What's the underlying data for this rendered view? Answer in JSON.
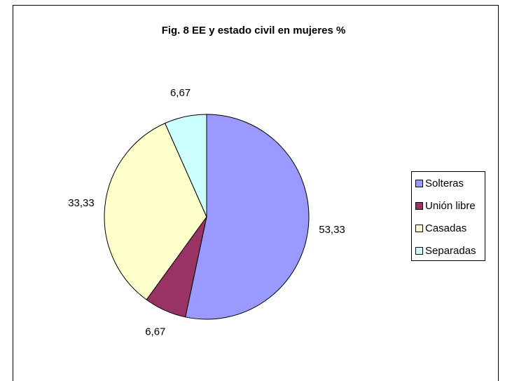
{
  "chart_data": {
    "type": "pie",
    "title": "Fig. 8  EE y estado civil en mujeres %",
    "categories": [
      "Solteras",
      "Unión libre",
      "Casadas",
      "Separadas"
    ],
    "values": [
      53.33,
      6.67,
      33.33,
      6.67
    ],
    "value_labels": [
      "53,33",
      "6,67",
      "33,33",
      "6,67"
    ],
    "colors": [
      "#9999ff",
      "#993366",
      "#ffffcc",
      "#ccffff"
    ],
    "legend": "right"
  }
}
